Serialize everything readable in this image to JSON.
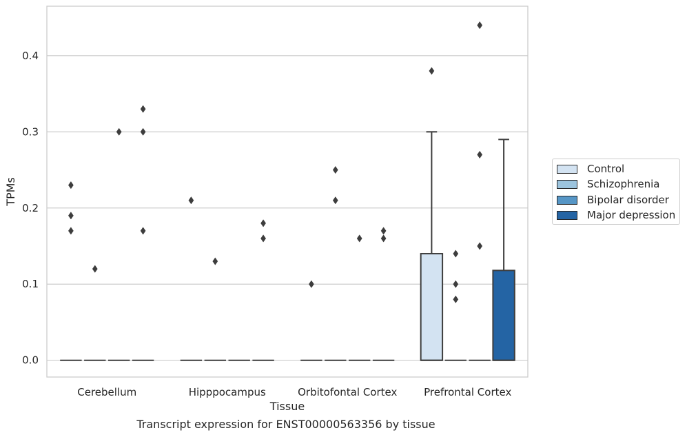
{
  "caption": "Transcript expression for ENST00000563356 by tissue",
  "legend": {
    "items": [
      {
        "label": "Control",
        "color": "#d3e3f2"
      },
      {
        "label": "Schizophrenia",
        "color": "#9cc4de"
      },
      {
        "label": "Bipolar disorder",
        "color": "#5696c6"
      },
      {
        "label": "Major depression",
        "color": "#2464a4"
      }
    ]
  },
  "chart_data": {
    "type": "box",
    "xlabel": "Tissue",
    "ylabel": "TPMs",
    "ylim": [
      -0.022,
      0.465
    ],
    "yticks": [
      0.0,
      0.1,
      0.2,
      0.3,
      0.4
    ],
    "ytick_labels": [
      "0.0",
      "0.1",
      "0.2",
      "0.3",
      "0.4"
    ],
    "grid": "horizontal",
    "legend_position": "right",
    "categories": [
      "Cerebellum",
      "Hipppocampus",
      "Orbitofontal Cortex",
      "Prefrontal Cortex"
    ],
    "series": [
      {
        "name": "Control",
        "color": "#d3e3f2",
        "boxes": [
          {
            "q1": 0,
            "median": 0,
            "q3": 0,
            "whisker_low": 0,
            "whisker_high": 0,
            "outliers": [
              0.23,
              0.19,
              0.17
            ]
          },
          {
            "q1": 0,
            "median": 0,
            "q3": 0,
            "whisker_low": 0,
            "whisker_high": 0,
            "outliers": [
              0.21
            ]
          },
          {
            "q1": 0,
            "median": 0,
            "q3": 0,
            "whisker_low": 0,
            "whisker_high": 0,
            "outliers": [
              0.1
            ]
          },
          {
            "q1": 0,
            "median": 0,
            "q3": 0.14,
            "whisker_low": 0,
            "whisker_high": 0.3,
            "outliers": [
              0.38
            ]
          }
        ]
      },
      {
        "name": "Schizophrenia",
        "color": "#9cc4de",
        "boxes": [
          {
            "q1": 0,
            "median": 0,
            "q3": 0,
            "whisker_low": 0,
            "whisker_high": 0,
            "outliers": [
              0.12
            ]
          },
          {
            "q1": 0,
            "median": 0,
            "q3": 0,
            "whisker_low": 0,
            "whisker_high": 0,
            "outliers": [
              0.13
            ]
          },
          {
            "q1": 0,
            "median": 0,
            "q3": 0,
            "whisker_low": 0,
            "whisker_high": 0,
            "outliers": [
              0.25,
              0.21
            ]
          },
          {
            "q1": 0,
            "median": 0,
            "q3": 0,
            "whisker_low": 0,
            "whisker_high": 0,
            "outliers": [
              0.14,
              0.1,
              0.08
            ]
          }
        ]
      },
      {
        "name": "Bipolar disorder",
        "color": "#5696c6",
        "boxes": [
          {
            "q1": 0,
            "median": 0,
            "q3": 0,
            "whisker_low": 0,
            "whisker_high": 0,
            "outliers": [
              0.3
            ]
          },
          {
            "q1": 0,
            "median": 0,
            "q3": 0,
            "whisker_low": 0,
            "whisker_high": 0,
            "outliers": []
          },
          {
            "q1": 0,
            "median": 0,
            "q3": 0,
            "whisker_low": 0,
            "whisker_high": 0,
            "outliers": [
              0.16
            ]
          },
          {
            "q1": 0,
            "median": 0,
            "q3": 0,
            "whisker_low": 0,
            "whisker_high": 0,
            "outliers": [
              0.44,
              0.27,
              0.15
            ]
          }
        ]
      },
      {
        "name": "Major depression",
        "color": "#2464a4",
        "boxes": [
          {
            "q1": 0,
            "median": 0,
            "q3": 0,
            "whisker_low": 0,
            "whisker_high": 0,
            "outliers": [
              0.33,
              0.3,
              0.17
            ]
          },
          {
            "q1": 0,
            "median": 0,
            "q3": 0,
            "whisker_low": 0,
            "whisker_high": 0,
            "outliers": [
              0.18,
              0.16
            ]
          },
          {
            "q1": 0,
            "median": 0,
            "q3": 0,
            "whisker_low": 0,
            "whisker_high": 0,
            "outliers": [
              0.17,
              0.16
            ]
          },
          {
            "q1": 0,
            "median": 0,
            "q3": 0.118,
            "whisker_low": 0,
            "whisker_high": 0.29,
            "outliers": []
          }
        ]
      }
    ]
  }
}
